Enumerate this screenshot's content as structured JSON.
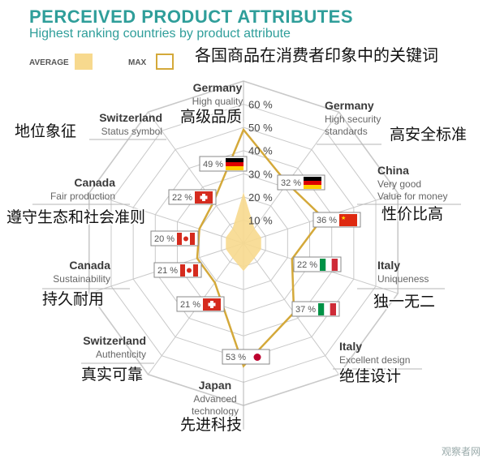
{
  "header": {
    "title": "PERCEIVED PRODUCT ATTRIBUTES",
    "subtitle": "Highest ranking countries by product attribute",
    "chinese_title": "各国商品在消费者印象中的关键词"
  },
  "legend": {
    "average_label": "AVERAGE",
    "max_label": "MAX",
    "average_color": "#f7d98e",
    "max_color": "#d4a93a"
  },
  "chart_data": {
    "type": "radar",
    "ticks": [
      "10 %",
      "20 %",
      "30 %",
      "40 %",
      "50 %",
      "60 %"
    ],
    "rmax": 70,
    "series": [
      {
        "name": "AVERAGE",
        "fill": "#f7d98e"
      },
      {
        "name": "MAX",
        "stroke": "#d4a93a"
      }
    ],
    "axes": [
      {
        "country": "Germany",
        "attribute": "High quality",
        "zh": "高级品质",
        "value": 49,
        "value_label": "49 %",
        "flag": "de",
        "average": 22
      },
      {
        "country": "Germany",
        "attribute": "High security\nstandards",
        "zh": "高安全标准",
        "value": 32,
        "value_label": "32 %",
        "flag": "de",
        "average": 8
      },
      {
        "country": "China",
        "attribute": "Very good\nValue for money",
        "zh": "性价比高",
        "value": 36,
        "value_label": "36 %",
        "flag": "cn",
        "average": 8
      },
      {
        "country": "Italy",
        "attribute": "Uniqueness",
        "zh": "独一无二",
        "value": 22,
        "value_label": "22 %",
        "flag": "it",
        "average": 8
      },
      {
        "country": "Italy",
        "attribute": "Excellent design",
        "zh": "绝佳设计",
        "value": 37,
        "value_label": "37 %",
        "flag": "it",
        "average": 8
      },
      {
        "country": "Japan",
        "attribute": "Advanced\ntechnology",
        "zh": "先进科技",
        "value": 53,
        "value_label": "53 %",
        "flag": "jp",
        "average": 12
      },
      {
        "country": "Switzerland",
        "attribute": "Authenticity",
        "zh": "真实可靠",
        "value": 21,
        "value_label": "21 %",
        "flag": "ch",
        "average": 8
      },
      {
        "country": "Canada",
        "attribute": "Sustainability",
        "zh": "持久耐用",
        "value": 21,
        "value_label": "21 %",
        "flag": "ca",
        "average": 8
      },
      {
        "country": "Canada",
        "attribute": "Fair production",
        "zh": "遵守生态和社会准则",
        "value": 20,
        "value_label": "20 %",
        "flag": "ca",
        "average": 8
      },
      {
        "country": "Switzerland",
        "attribute": "Status symbol",
        "zh": "地位象征",
        "value": 22,
        "value_label": "22 %",
        "flag": "ch",
        "average": 8
      }
    ]
  },
  "watermark": "观察者网"
}
